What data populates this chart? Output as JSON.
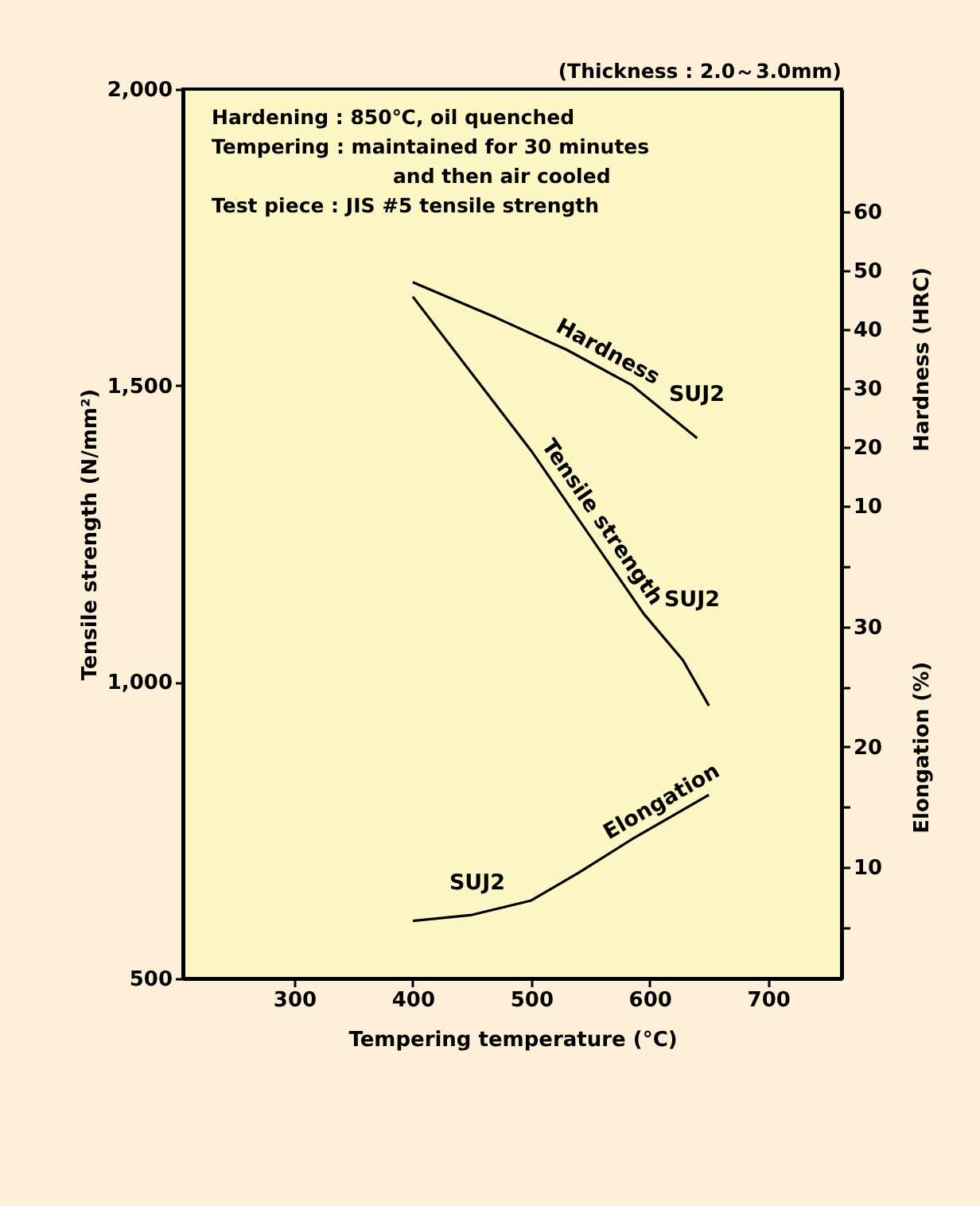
{
  "chart_data": {
    "type": "line",
    "subtitle": "(Thickness : 2.0～3.0mm)",
    "xlabel": "Tempering temperature (°C)",
    "ylabel": "Tensile strength (N/mm²)",
    "y2label": "Hardness (HRC)",
    "y3label": "Elongation (%)",
    "xlim": [
      206,
      762
    ],
    "xticks": [
      300,
      400,
      500,
      600,
      700
    ],
    "ylim": [
      500,
      2000
    ],
    "yticks": [
      {
        "value": 500,
        "label": "500"
      },
      {
        "value": 1000,
        "label": "1,000"
      },
      {
        "value": 1500,
        "label": "1,500"
      },
      {
        "value": 2000,
        "label": "2,000"
      }
    ],
    "y2lim": [
      -70.3,
      80.8
    ],
    "y2ticks": [
      10,
      20,
      30,
      40,
      50,
      60
    ],
    "y3lim": [
      0.7,
      74.8
    ],
    "y3ticks": [
      {
        "value": 5,
        "label": null
      },
      10,
      {
        "value": 15,
        "label": null
      },
      20,
      {
        "value": 25,
        "label": null
      },
      30,
      {
        "value": 35,
        "label": null
      }
    ],
    "grid": false,
    "legend": false,
    "marker": "none",
    "line_style": "solid",
    "series": [
      {
        "name": "Hardness",
        "color": "#000000",
        "axis": "y2",
        "x": [
          400,
          470,
          530,
          585,
          640
        ],
        "values": [
          48,
          42,
          36.5,
          30.5,
          21.5
        ]
      },
      {
        "name": "Tensile strength",
        "color": "#000000",
        "x": [
          400,
          500,
          595,
          628,
          650
        ],
        "values": [
          1650,
          1390,
          1115,
          1037,
          960
        ]
      },
      {
        "name": "Elongation",
        "color": "#000000",
        "axis": "y3",
        "x": [
          400,
          450,
          500,
          540,
          585,
          650
        ],
        "values": [
          5.5,
          6,
          7.2,
          9.5,
          12.3,
          16
        ]
      }
    ],
    "annotations": [
      "Hardening : 850℃, oil quenched",
      "Tempering : maintained for 30 minutes",
      "and then air cooled",
      "Test piece : JIS #5 tensile strength",
      "SUJ2",
      "SUJ2",
      "SUJ2"
    ]
  }
}
